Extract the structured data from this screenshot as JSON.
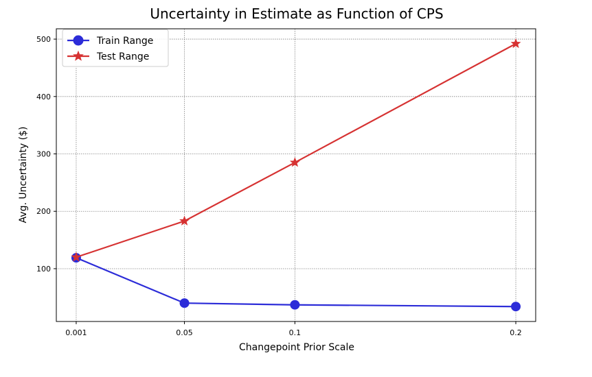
{
  "chart_data": {
    "type": "line",
    "title": "Uncertainty in Estimate as Function of CPS",
    "xlabel": "Changepoint Prior Scale",
    "ylabel": "Avg. Uncertainty ($)",
    "x": [
      0.001,
      0.05,
      0.1,
      0.2
    ],
    "x_tick_labels": [
      "0.001",
      "0.05",
      "0.1",
      "0.2"
    ],
    "xlim": [
      -0.008,
      0.209
    ],
    "ylim": [
      8,
      518
    ],
    "y_ticks": [
      100,
      200,
      300,
      400,
      500
    ],
    "y_tick_labels": [
      "100",
      "200",
      "300",
      "400",
      "500"
    ],
    "grid": true,
    "legend_position": "top-left",
    "series": [
      {
        "name": "Train Range",
        "values": [
          119,
          40,
          37,
          34
        ],
        "color": "#2c2cd8",
        "marker": "circle"
      },
      {
        "name": "Test Range",
        "values": [
          120,
          183,
          285,
          492
        ],
        "color": "#d63232",
        "marker": "star"
      }
    ]
  }
}
